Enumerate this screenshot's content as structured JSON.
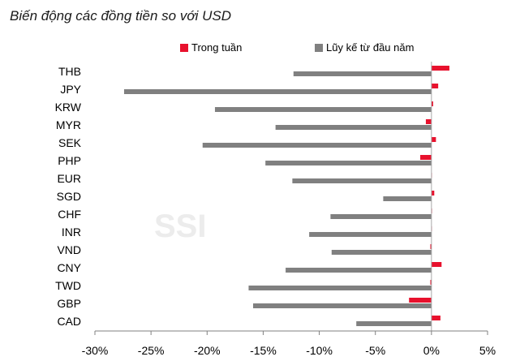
{
  "chart_data": {
    "type": "bar",
    "orientation": "horizontal",
    "title": "Biến động các đồng tiền so với USD",
    "watermark": "SSI",
    "categories": [
      "THB",
      "JPY",
      "KRW",
      "MYR",
      "SEK",
      "PHP",
      "EUR",
      "SGD",
      "CHF",
      "INR",
      "VND",
      "CNY",
      "TWD",
      "GBP",
      "CAD"
    ],
    "series": [
      {
        "name": "Trong tuần",
        "color": "#e8112d",
        "values": [
          1.6,
          0.6,
          0.15,
          -0.5,
          0.4,
          -1.0,
          0.0,
          0.25,
          0.05,
          0.0,
          -0.1,
          0.9,
          -0.1,
          -2.0,
          0.8
        ]
      },
      {
        "name": "Lũy kế từ đầu năm",
        "color": "#808080",
        "values": [
          -12.3,
          -27.4,
          -19.3,
          -13.9,
          -20.4,
          -14.8,
          -12.4,
          -4.3,
          -9.0,
          -10.9,
          -8.9,
          -13.0,
          -16.3,
          -15.9,
          -6.7
        ]
      }
    ],
    "xlim": [
      -30,
      5
    ],
    "xticks": [
      -30,
      -25,
      -20,
      -15,
      -10,
      -5,
      0,
      5
    ],
    "xtick_labels": [
      "-30%",
      "-25%",
      "-20%",
      "-15%",
      "-10%",
      "-5%",
      "0%",
      "5%"
    ],
    "legend_position": "top"
  }
}
